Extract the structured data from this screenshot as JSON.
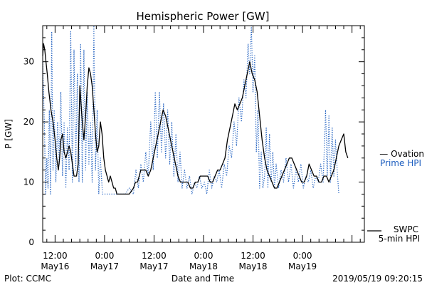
{
  "chart_data": {
    "type": "line",
    "title": "Hemispheric Power [GW]",
    "xlabel": "Date and Time",
    "ylabel": "P [GW]",
    "ylim": [
      0,
      36
    ],
    "yticks": [
      0,
      10,
      20,
      30
    ],
    "xlim_hours": [
      -3,
      75
    ],
    "xticks": [
      {
        "hour": 0,
        "time": "12:00",
        "date": "May16"
      },
      {
        "hour": 12,
        "time": "0:00",
        "date": "May17"
      },
      {
        "hour": 24,
        "time": "12:00",
        "date": "May17"
      },
      {
        "hour": 36,
        "time": "0:00",
        "date": "May18"
      },
      {
        "hour": 48,
        "time": "12:00",
        "date": "May18"
      },
      {
        "hour": 60,
        "time": "0:00",
        "date": "May19"
      }
    ],
    "series": [
      {
        "name": "Ovation Prime HPI",
        "label_lines": [
          "— Ovation",
          "Prime HPI"
        ],
        "color": "#2060c0",
        "style": "dotted",
        "points": [
          [
            -3,
            30
          ],
          [
            -2.6,
            20
          ],
          [
            -2.3,
            8
          ],
          [
            -2,
            14
          ],
          [
            -1.7,
            9
          ],
          [
            -1.4,
            22
          ],
          [
            -1.1,
            8
          ],
          [
            -0.8,
            35
          ],
          [
            -0.5,
            12
          ],
          [
            -0.2,
            22
          ],
          [
            0.2,
            10
          ],
          [
            0.6,
            20
          ],
          [
            1,
            13
          ],
          [
            1.4,
            25
          ],
          [
            1.8,
            11
          ],
          [
            2.2,
            20
          ],
          [
            2.6,
            9
          ],
          [
            3,
            19
          ],
          [
            3.4,
            12
          ],
          [
            3.8,
            35
          ],
          [
            4.2,
            10
          ],
          [
            4.6,
            32
          ],
          [
            5,
            12
          ],
          [
            5.4,
            28
          ],
          [
            5.8,
            10
          ],
          [
            6.2,
            33
          ],
          [
            6.6,
            10
          ],
          [
            7,
            32
          ],
          [
            7.4,
            12
          ],
          [
            7.8,
            25
          ],
          [
            8.2,
            13
          ],
          [
            8.6,
            20
          ],
          [
            9,
            10
          ],
          [
            9.4,
            36
          ],
          [
            9.8,
            12
          ],
          [
            10.2,
            22
          ],
          [
            10.6,
            8
          ],
          [
            11,
            14
          ],
          [
            11.5,
            8
          ],
          [
            12.5,
            8
          ],
          [
            14,
            8
          ],
          [
            15.5,
            8
          ],
          [
            17,
            8
          ],
          [
            18,
            9
          ],
          [
            19,
            8
          ],
          [
            19.6,
            12
          ],
          [
            20.2,
            9
          ],
          [
            20.8,
            13
          ],
          [
            21.4,
            10
          ],
          [
            22,
            15
          ],
          [
            22.6,
            11
          ],
          [
            23.2,
            20
          ],
          [
            23.8,
            12
          ],
          [
            24.3,
            25
          ],
          [
            24.8,
            14
          ],
          [
            25.3,
            25
          ],
          [
            25.8,
            15
          ],
          [
            26.3,
            23
          ],
          [
            26.8,
            14
          ],
          [
            27.3,
            22
          ],
          [
            27.8,
            13
          ],
          [
            28.3,
            20
          ],
          [
            28.8,
            11
          ],
          [
            29.3,
            18
          ],
          [
            29.8,
            10
          ],
          [
            30.3,
            15
          ],
          [
            30.8,
            9
          ],
          [
            31.4,
            12
          ],
          [
            32,
            9
          ],
          [
            32.6,
            11
          ],
          [
            33.2,
            8
          ],
          [
            33.8,
            10
          ],
          [
            34.4,
            9
          ],
          [
            35,
            11
          ],
          [
            35.6,
            9
          ],
          [
            36.2,
            10
          ],
          [
            36.8,
            8
          ],
          [
            37.4,
            12
          ],
          [
            38,
            9
          ],
          [
            38.6,
            11
          ],
          [
            39.2,
            10
          ],
          [
            39.8,
            12
          ],
          [
            40.4,
            9
          ],
          [
            41,
            13
          ],
          [
            41.6,
            11
          ],
          [
            42.2,
            16
          ],
          [
            42.8,
            14
          ],
          [
            43.4,
            20
          ],
          [
            44,
            16
          ],
          [
            44.6,
            24
          ],
          [
            45.2,
            20
          ],
          [
            45.8,
            27
          ],
          [
            46.3,
            24
          ],
          [
            46.8,
            33
          ],
          [
            47.2,
            28
          ],
          [
            47.6,
            36
          ],
          [
            48,
            25
          ],
          [
            48.4,
            31
          ],
          [
            48.8,
            15
          ],
          [
            49.2,
            22
          ],
          [
            49.6,
            9
          ],
          [
            50,
            15
          ],
          [
            50.4,
            9
          ],
          [
            50.8,
            11
          ],
          [
            51.2,
            19
          ],
          [
            51.6,
            9
          ],
          [
            52,
            18
          ],
          [
            52.4,
            10
          ],
          [
            52.8,
            15
          ],
          [
            53.2,
            9
          ],
          [
            53.6,
            13
          ],
          [
            54.2,
            9
          ],
          [
            54.8,
            12
          ],
          [
            55.4,
            10
          ],
          [
            56,
            14
          ],
          [
            56.6,
            10
          ],
          [
            57.2,
            13
          ],
          [
            57.8,
            9
          ],
          [
            58.4,
            12
          ],
          [
            59,
            10
          ],
          [
            59.6,
            13
          ],
          [
            60.2,
            9
          ],
          [
            60.8,
            11
          ],
          [
            61.4,
            10
          ],
          [
            62,
            12
          ],
          [
            62.6,
            9
          ],
          [
            63.2,
            11
          ],
          [
            63.8,
            10
          ],
          [
            64.4,
            13
          ],
          [
            65,
            10
          ],
          [
            65.6,
            22
          ],
          [
            66,
            11
          ],
          [
            66.4,
            21
          ],
          [
            66.8,
            10
          ],
          [
            67.2,
            19
          ],
          [
            67.6,
            11
          ],
          [
            68,
            17
          ],
          [
            68.4,
            12
          ],
          [
            68.8,
            8
          ]
        ]
      },
      {
        "name": "SWPC 5-min HPI",
        "label_lines": [
          "SWPC",
          "5-min HPI"
        ],
        "color": "#000000",
        "style": "solid",
        "points": [
          [
            -3,
            31
          ],
          [
            -2.8,
            33
          ],
          [
            -2.5,
            32
          ],
          [
            -2.2,
            30
          ],
          [
            -1.9,
            28
          ],
          [
            -1.5,
            25
          ],
          [
            -1,
            22
          ],
          [
            -0.5,
            20
          ],
          [
            0,
            17
          ],
          [
            0.4,
            14
          ],
          [
            0.8,
            12
          ],
          [
            1.1,
            14
          ],
          [
            1.4,
            17
          ],
          [
            1.8,
            18
          ],
          [
            2.2,
            15
          ],
          [
            2.6,
            14
          ],
          [
            3,
            15
          ],
          [
            3.4,
            16
          ],
          [
            3.8,
            15
          ],
          [
            4.2,
            13
          ],
          [
            4.6,
            11
          ],
          [
            5.2,
            11
          ],
          [
            5.6,
            13
          ],
          [
            6,
            26
          ],
          [
            6.3,
            23
          ],
          [
            6.6,
            20
          ],
          [
            7,
            17
          ],
          [
            7.4,
            21
          ],
          [
            7.8,
            26
          ],
          [
            8.2,
            29
          ],
          [
            8.6,
            28
          ],
          [
            9,
            26
          ],
          [
            9.4,
            22
          ],
          [
            9.8,
            18
          ],
          [
            10.2,
            15
          ],
          [
            10.6,
            16
          ],
          [
            11,
            20
          ],
          [
            11.4,
            18
          ],
          [
            11.8,
            14
          ],
          [
            12.2,
            12
          ],
          [
            12.6,
            11
          ],
          [
            13,
            10
          ],
          [
            13.4,
            11
          ],
          [
            13.8,
            10
          ],
          [
            14.2,
            9
          ],
          [
            14.6,
            9
          ],
          [
            15,
            8
          ],
          [
            16,
            8
          ],
          [
            17,
            8
          ],
          [
            18,
            8
          ],
          [
            19,
            9
          ],
          [
            19.5,
            10
          ],
          [
            20,
            10
          ],
          [
            20.4,
            11
          ],
          [
            20.8,
            12
          ],
          [
            21.4,
            12
          ],
          [
            22,
            12
          ],
          [
            22.6,
            11
          ],
          [
            23.2,
            12
          ],
          [
            23.8,
            14
          ],
          [
            24.4,
            16
          ],
          [
            25,
            18
          ],
          [
            25.6,
            20
          ],
          [
            26.2,
            22
          ],
          [
            26.8,
            21
          ],
          [
            27.4,
            19
          ],
          [
            28,
            17
          ],
          [
            28.6,
            15
          ],
          [
            29.2,
            13
          ],
          [
            29.8,
            11
          ],
          [
            30.4,
            10
          ],
          [
            31,
            10
          ],
          [
            31.6,
            10
          ],
          [
            32.2,
            10
          ],
          [
            32.8,
            9
          ],
          [
            33.4,
            9
          ],
          [
            34,
            10
          ],
          [
            34.6,
            10
          ],
          [
            35.2,
            11
          ],
          [
            35.8,
            11
          ],
          [
            36.4,
            11
          ],
          [
            37,
            11
          ],
          [
            37.6,
            10
          ],
          [
            38.2,
            10
          ],
          [
            38.8,
            11
          ],
          [
            39.4,
            12
          ],
          [
            40,
            12
          ],
          [
            40.6,
            13
          ],
          [
            41.2,
            14
          ],
          [
            41.8,
            17
          ],
          [
            42.4,
            19
          ],
          [
            43,
            21
          ],
          [
            43.6,
            23
          ],
          [
            44.2,
            22
          ],
          [
            44.8,
            23
          ],
          [
            45.4,
            24
          ],
          [
            46,
            26
          ],
          [
            46.6,
            28
          ],
          [
            47.2,
            30
          ],
          [
            47.8,
            28
          ],
          [
            48.4,
            27
          ],
          [
            49,
            25
          ],
          [
            49.6,
            21
          ],
          [
            50.2,
            17
          ],
          [
            50.8,
            14
          ],
          [
            51.4,
            12
          ],
          [
            52,
            11
          ],
          [
            52.6,
            10
          ],
          [
            53.2,
            9
          ],
          [
            53.8,
            9
          ],
          [
            54.4,
            10
          ],
          [
            55,
            11
          ],
          [
            55.6,
            12
          ],
          [
            56.2,
            13
          ],
          [
            56.8,
            14
          ],
          [
            57.4,
            14
          ],
          [
            58,
            13
          ],
          [
            58.6,
            12
          ],
          [
            59.2,
            11
          ],
          [
            59.8,
            10
          ],
          [
            60.4,
            10
          ],
          [
            61,
            11
          ],
          [
            61.6,
            13
          ],
          [
            62.2,
            12
          ],
          [
            62.8,
            11
          ],
          [
            63.4,
            11
          ],
          [
            64,
            10
          ],
          [
            64.6,
            10
          ],
          [
            65.2,
            11
          ],
          [
            65.8,
            11
          ],
          [
            66.4,
            10
          ],
          [
            67,
            11
          ],
          [
            67.6,
            12
          ],
          [
            68.2,
            14
          ],
          [
            68.8,
            16
          ],
          [
            69.4,
            17
          ],
          [
            70,
            18
          ],
          [
            70.5,
            15
          ],
          [
            71,
            14
          ]
        ]
      }
    ]
  },
  "footer": {
    "left": "Plot: CCMC",
    "right": "2019/05/19 09:20:15"
  }
}
